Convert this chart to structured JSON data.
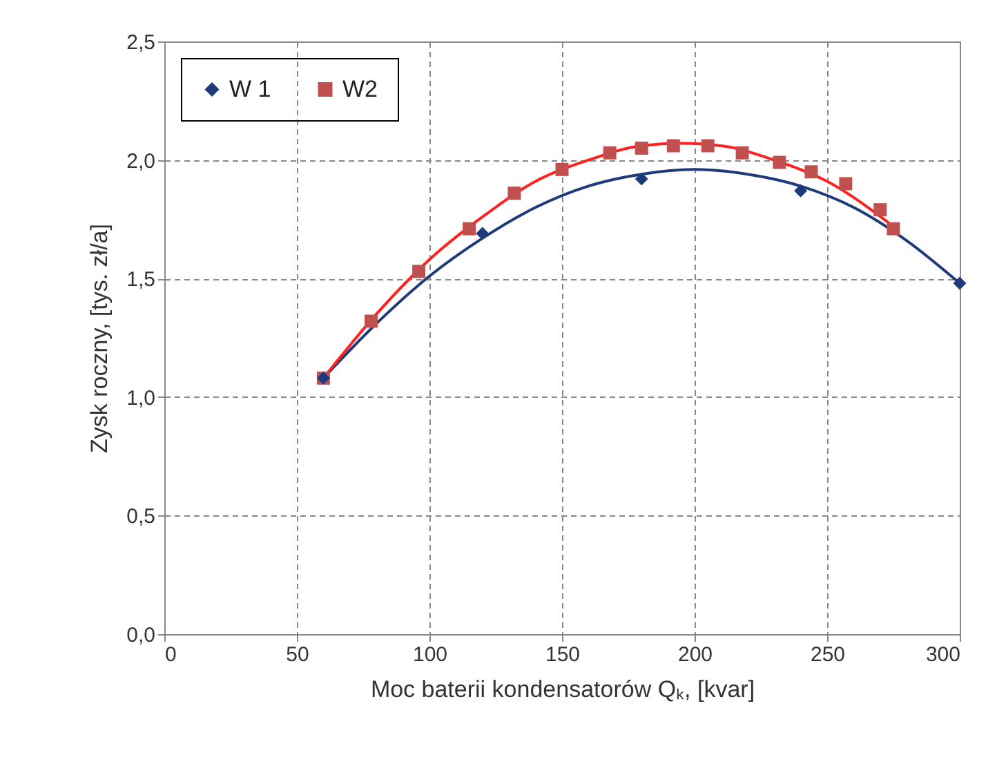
{
  "chart_data": {
    "type": "scatter",
    "xlabel": "Moc baterii kondensatorów Qₖ, [kvar]",
    "ylabel": "Zysk roczny,  [tys. zł/a]",
    "xlim": [
      0,
      300
    ],
    "xticks": [
      0,
      50,
      100,
      150,
      200,
      250,
      300
    ],
    "ylim": [
      0,
      2.5
    ],
    "yticks": [
      {
        "value": 0,
        "label": "0,0"
      },
      {
        "value": 0.5,
        "label": "0,5"
      },
      {
        "value": 1,
        "label": "1,0"
      },
      {
        "value": 1.5,
        "label": "1,5"
      },
      {
        "value": 2,
        "label": "2,0"
      },
      {
        "value": 2.5,
        "label": "2,5"
      }
    ],
    "grid": true,
    "legend": "top left",
    "series": [
      {
        "name": "W 1",
        "color": "#1f3a7a",
        "marker": "diamond",
        "x": [
          60,
          120,
          180,
          240,
          300
        ],
        "values": [
          1.08,
          1.69,
          1.92,
          1.87,
          1.48
        ]
      },
      {
        "name": "W2",
        "color": "#c0504d",
        "marker": "square",
        "x": [
          60,
          78,
          96,
          115,
          132,
          150,
          168,
          180,
          192,
          205,
          218,
          232,
          244,
          257,
          270,
          275
        ],
        "values": [
          1.08,
          1.32,
          1.53,
          1.71,
          1.86,
          1.96,
          2.03,
          2.05,
          2.06,
          2.06,
          2.03,
          1.99,
          1.95,
          1.9,
          1.79,
          1.71
        ]
      },
      {
        "type": "line",
        "color": "#1f3a7a",
        "marker": "none",
        "x": [
          60,
          80,
          100,
          120,
          140,
          160,
          180,
          200,
          220,
          240,
          260,
          280,
          300
        ],
        "values": [
          1.08,
          1.31,
          1.51,
          1.67,
          1.8,
          1.89,
          1.94,
          1.96,
          1.94,
          1.89,
          1.8,
          1.66,
          1.48
        ]
      },
      {
        "type": "line",
        "color": "#ff2020",
        "marker": "none",
        "x": [
          60,
          80,
          100,
          120,
          140,
          160,
          180,
          195,
          210,
          230,
          250,
          275
        ],
        "values": [
          1.08,
          1.35,
          1.58,
          1.76,
          1.91,
          2.0,
          2.06,
          2.07,
          2.06,
          2.0,
          1.91,
          1.72
        ]
      }
    ]
  }
}
